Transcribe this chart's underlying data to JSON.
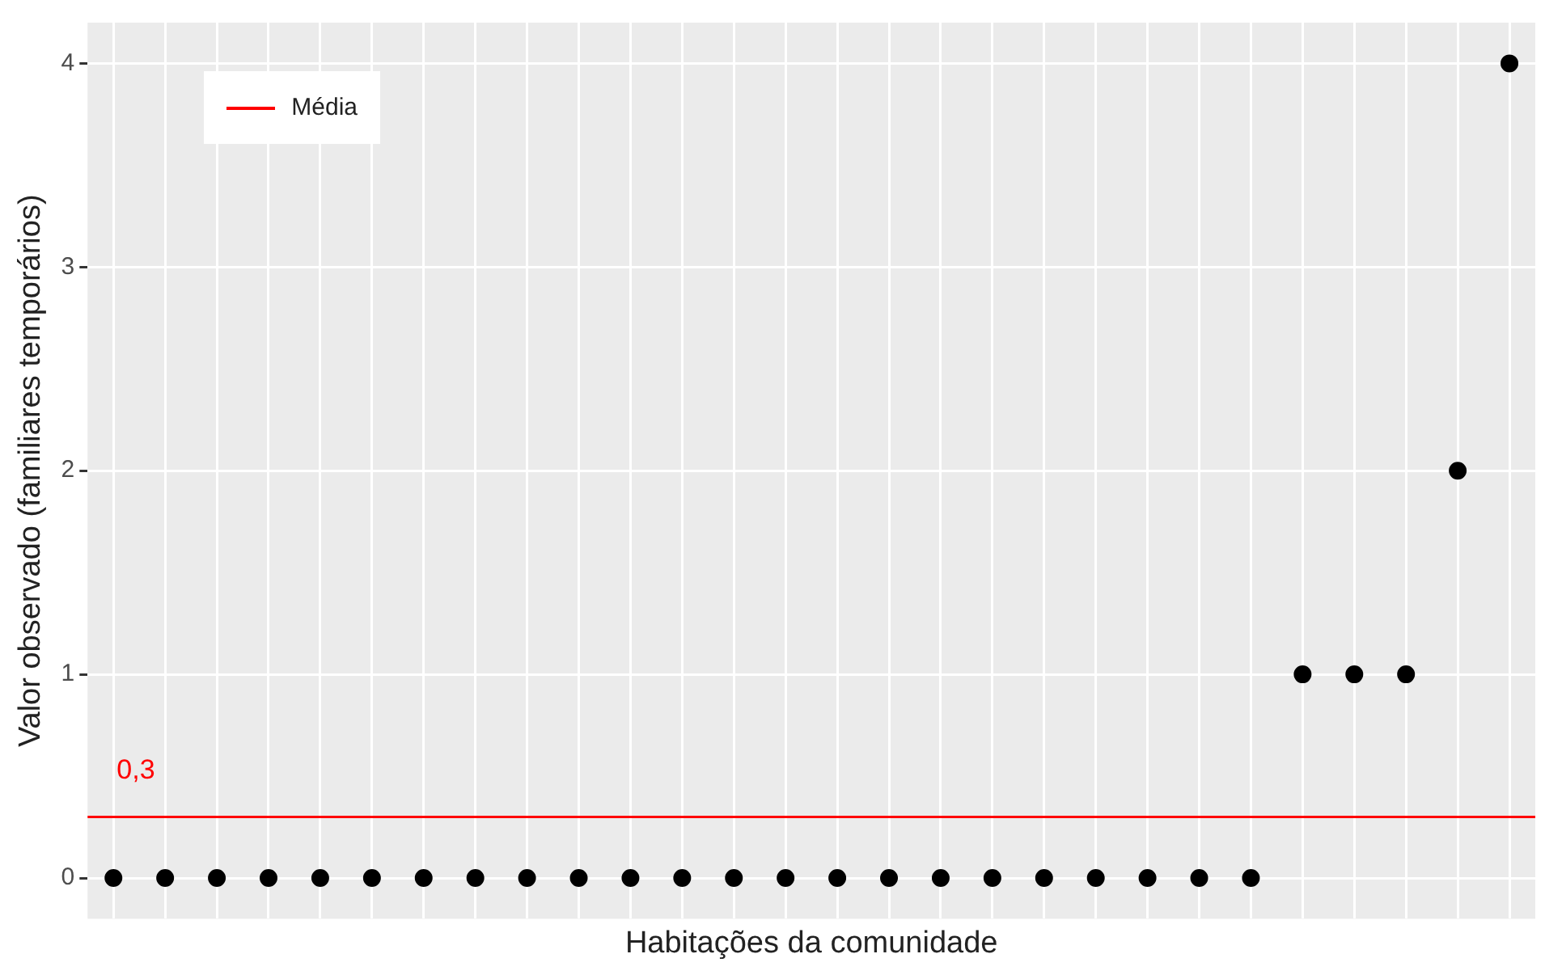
{
  "chart_data": {
    "type": "scatter",
    "xlabel": "Habitações da comunidade",
    "ylabel": "Valor observado (familiares temporários)",
    "categories": [
      null,
      null,
      null,
      null,
      null,
      null,
      null,
      null,
      null,
      null,
      null,
      null,
      null,
      null,
      null,
      null,
      null,
      null,
      null,
      null,
      null,
      null,
      null,
      null,
      null,
      null,
      null,
      null
    ],
    "series": [
      {
        "color": "#000000",
        "values": [
          0,
          0,
          0,
          0,
          0,
          0,
          0,
          0,
          0,
          0,
          0,
          0,
          0,
          0,
          0,
          0,
          0,
          0,
          0,
          0,
          0,
          0,
          0,
          1,
          1,
          1,
          2,
          4
        ]
      }
    ],
    "ylim": [
      -0.2,
      4.2
    ],
    "yticks": [
      0,
      1,
      2,
      3,
      4
    ],
    "grid": true,
    "tick_labels": "y",
    "marker": "circle",
    "legend": "top left",
    "ref_lines": [
      {
        "axis": "y",
        "value": 0.3,
        "label": "Média",
        "color": "#ff0000"
      }
    ],
    "annotations": [
      {
        "text": "0,3",
        "y": 0.3
      }
    ]
  }
}
